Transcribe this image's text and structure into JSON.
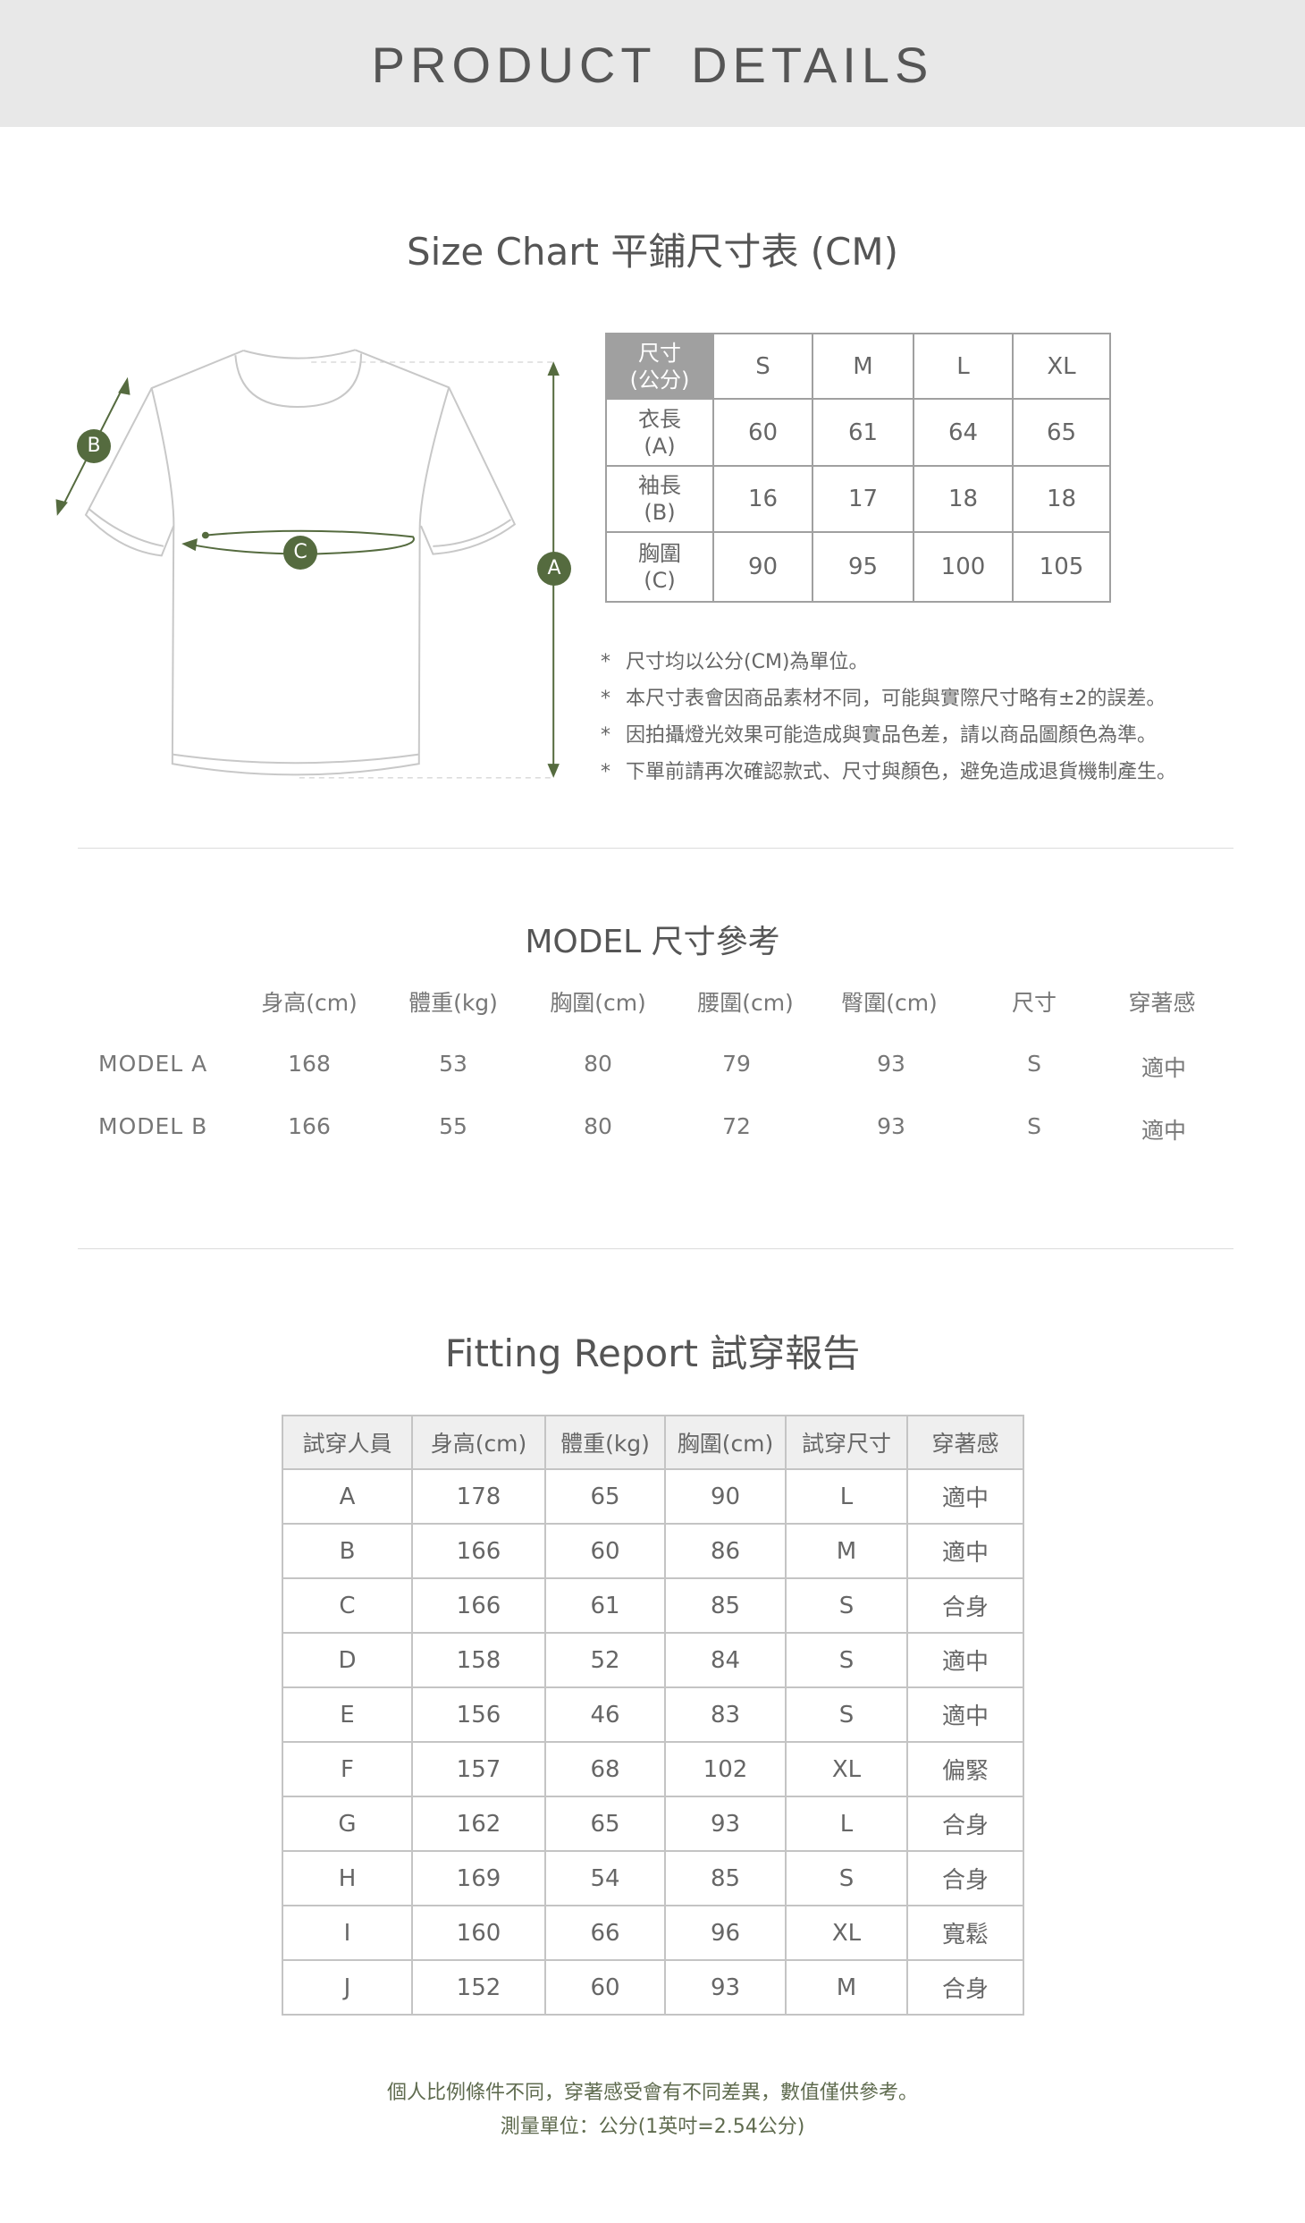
{
  "header": {
    "title": "PRODUCT  DETAILS"
  },
  "size_chart": {
    "title": "Size Chart 平鋪尺寸表 (CM)",
    "diagram_labels": {
      "a": "A",
      "b": "B",
      "c": "C"
    },
    "corner": [
      "尺寸",
      "(公分)"
    ],
    "sizes": [
      "S",
      "M",
      "L",
      "XL"
    ],
    "rows": [
      {
        "label": [
          "衣長",
          "(A)"
        ],
        "values": [
          "60",
          "61",
          "64",
          "65"
        ]
      },
      {
        "label": [
          "袖長",
          "(B)"
        ],
        "values": [
          "16",
          "17",
          "18",
          "18"
        ]
      },
      {
        "label": [
          "胸圍",
          "(C)"
        ],
        "values": [
          "90",
          "95",
          "100",
          "105"
        ]
      }
    ],
    "note_marker": "*",
    "notes": [
      "尺寸均以公分(CM)為單位。",
      "本尺寸表會因商品素材不同，可能與實際尺寸略有±2的誤差。",
      "因拍攝燈光效果可能造成與實品色差，請以商品圖顏色為準。",
      "下單前請再次確認款式、尺寸與顏色，避免造成退貨機制產生。"
    ],
    "accent_color": "#556b3f"
  },
  "model": {
    "title": "MODEL 尺寸參考",
    "headers": [
      "身高(cm)",
      "體重(kg)",
      "胸圍(cm)",
      "腰圍(cm)",
      "臀圍(cm)",
      "尺寸",
      "穿著感"
    ],
    "rows": [
      {
        "name": "MODEL A",
        "values": [
          "168",
          "53",
          "80",
          "79",
          "93",
          "S",
          "適中"
        ]
      },
      {
        "name": "MODEL B",
        "values": [
          "166",
          "55",
          "80",
          "72",
          "93",
          "S",
          "適中"
        ]
      }
    ]
  },
  "fitting": {
    "title": "Fitting Report 試穿報告",
    "headers": [
      "試穿人員",
      "身高(cm)",
      "體重(kg)",
      "胸圍(cm)",
      "試穿尺寸",
      "穿著感"
    ],
    "rows": [
      [
        "A",
        "178",
        "65",
        "90",
        "L",
        "適中"
      ],
      [
        "B",
        "166",
        "60",
        "86",
        "M",
        "適中"
      ],
      [
        "C",
        "166",
        "61",
        "85",
        "S",
        "合身"
      ],
      [
        "D",
        "158",
        "52",
        "84",
        "S",
        "適中"
      ],
      [
        "E",
        "156",
        "46",
        "83",
        "S",
        "適中"
      ],
      [
        "F",
        "157",
        "68",
        "102",
        "XL",
        "偏緊"
      ],
      [
        "G",
        "162",
        "65",
        "93",
        "L",
        "合身"
      ],
      [
        "H",
        "169",
        "54",
        "85",
        "S",
        "合身"
      ],
      [
        "I",
        "160",
        "66",
        "96",
        "XL",
        "寬鬆"
      ],
      [
        "J",
        "152",
        "60",
        "93",
        "M",
        "合身"
      ]
    ],
    "footnotes": [
      "個人比例條件不同，穿著感受會有不同差異，數值僅供參考。",
      "測量單位：公分(1英吋=2.54公分)"
    ]
  }
}
